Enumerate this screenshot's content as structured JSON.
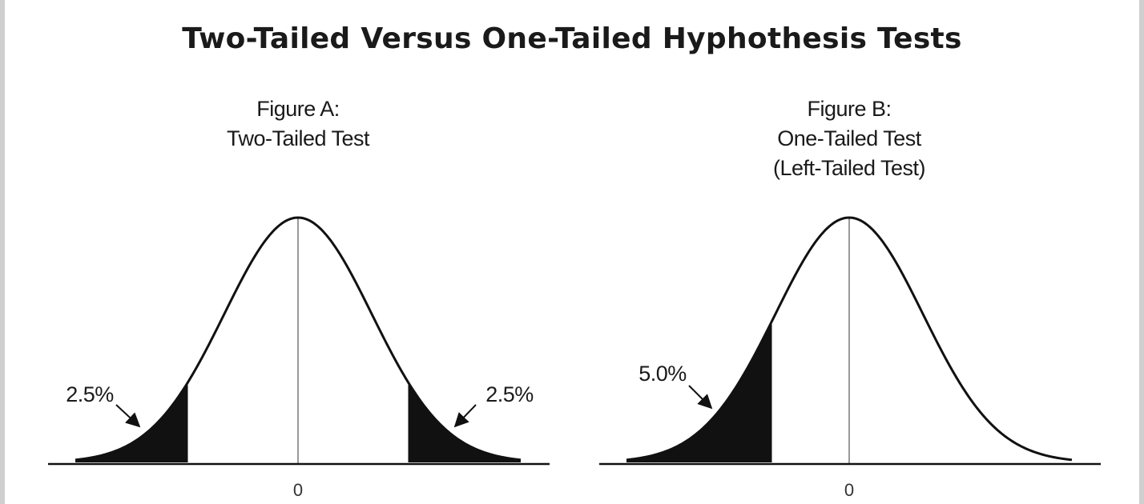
{
  "title": "Two-Tailed Versus One-Tailed Hyphothesis Tests",
  "figures": [
    {
      "heading": [
        "Figure A:",
        "Two-Tailed Test"
      ],
      "type": "two-tailed",
      "tails": [
        {
          "side": "left",
          "label": "2.5%"
        },
        {
          "side": "right",
          "label": "2.5%"
        }
      ],
      "center_label": "0"
    },
    {
      "heading": [
        "Figure B:",
        "One-Tailed Test",
        "(Left-Tailed Test)"
      ],
      "type": "left-tailed",
      "tails": [
        {
          "side": "left",
          "label": "5.0%"
        }
      ],
      "center_label": "0"
    }
  ],
  "colors": {
    "curve": "#111111",
    "shade": "#111111",
    "center_line": "#9a9a9a",
    "axis": "#111111",
    "border": "#cfcfcf"
  }
}
